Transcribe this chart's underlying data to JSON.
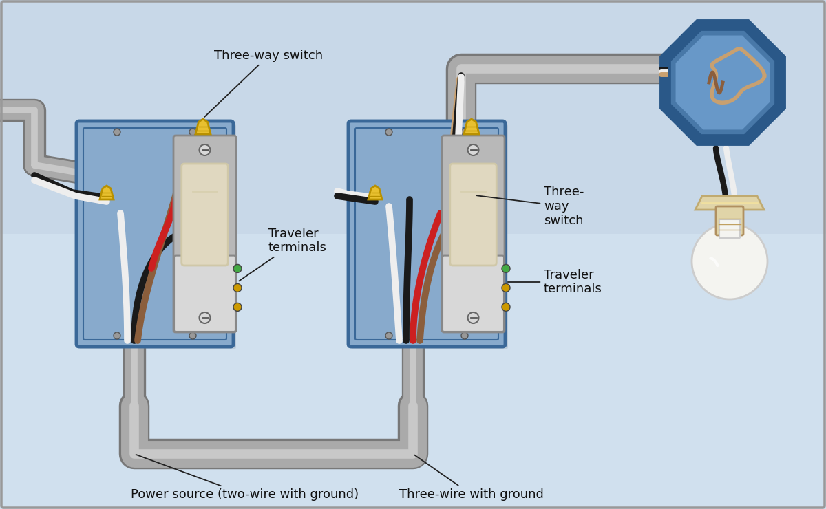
{
  "bg_color_top": "#c8d8e8",
  "bg_color_bot": "#d8e4f0",
  "border_color": "#aaaaaa",
  "labels": {
    "three_way_switch_1": "Three-way switch",
    "three_way_switch_2": "Three-\nway\nswitch",
    "traveler_terminals_1": "Traveler\nterminals",
    "traveler_terminals_2": "Traveler\nterminals",
    "power_source": "Power source (two-wire with ground)",
    "three_wire": "Three-wire with ground"
  },
  "colors": {
    "box_blue_dark": "#3a6898",
    "box_blue_mid": "#5588bb",
    "box_blue_light": "#7aaace",
    "box_blue_fill": "#88aacc",
    "wire_gray_dark": "#787878",
    "wire_gray": "#aaaaaa",
    "wire_gray_light": "#c8c8c8",
    "wire_black": "#1a1a1a",
    "wire_white": "#eeeeee",
    "wire_red": "#cc2020",
    "wire_brown": "#8B5E3C",
    "wire_tan": "#c8a070",
    "wire_green": "#448844",
    "switch_body_light": "#e0d8c0",
    "switch_body_mid": "#d0c8a8",
    "switch_metal_light": "#d8d8d8",
    "switch_metal_mid": "#b8b8b8",
    "switch_metal_dark": "#888888",
    "connector_yellow": "#e8c030",
    "connector_yellow_dark": "#b89000",
    "lamp_base": "#e0d4a8",
    "lamp_glass": "#f4f4f0",
    "ceiling_box_dark": "#2a5888",
    "ceiling_box_mid": "#4878a8",
    "ceiling_box_light": "#6898c8"
  }
}
